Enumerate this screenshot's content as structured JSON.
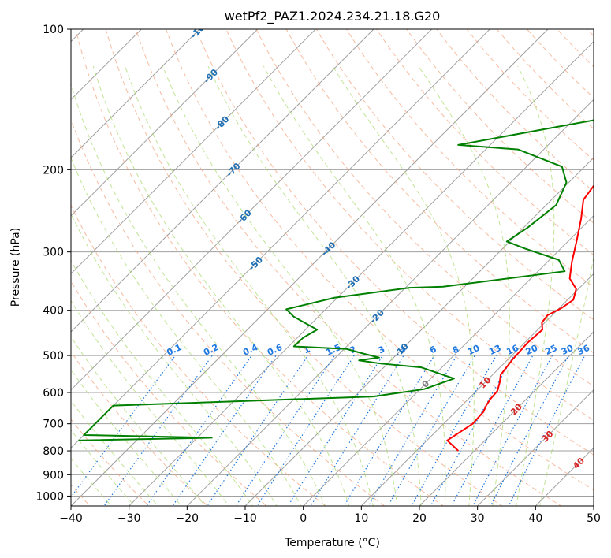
{
  "chart_data": {
    "type": "line",
    "title": "wetPf2_PAZ1.2024.234.21.18.G20",
    "xlabel": "Temperature (°C)",
    "ylabel": "Pressure (hPa)",
    "xlim": [
      -40,
      50
    ],
    "ylim": [
      1050,
      100
    ],
    "y_scale": "log",
    "skew": "skew-T",
    "grid": true,
    "x_ticks": [
      -40,
      -30,
      -20,
      -10,
      0,
      10,
      20,
      30,
      40,
      50
    ],
    "y_ticks": [
      100,
      200,
      300,
      400,
      500,
      600,
      700,
      800,
      900,
      1000
    ],
    "series": [
      {
        "color": "#ff0000",
        "points": [
          [
            17.2,
            800
          ],
          [
            13.5,
            760
          ],
          [
            15.0,
            700
          ],
          [
            14.8,
            660
          ],
          [
            14.2,
            640
          ],
          [
            13.8,
            620
          ],
          [
            13.6,
            595
          ],
          [
            12.5,
            570
          ],
          [
            11.4,
            550
          ],
          [
            10.8,
            510
          ],
          [
            10.5,
            470
          ],
          [
            10.8,
            440
          ],
          [
            9.5,
            425
          ],
          [
            9.2,
            410
          ],
          [
            10.4,
            395
          ],
          [
            11.0,
            380
          ],
          [
            9.6,
            360
          ],
          [
            6.7,
            342
          ],
          [
            4.2,
            315
          ],
          [
            1.5,
            285
          ],
          [
            -1.6,
            255
          ],
          [
            -4.5,
            232
          ],
          [
            -5.2,
            215
          ],
          [
            -3.7,
            197
          ],
          [
            -1.2,
            184
          ],
          [
            3.3,
            172
          ],
          [
            5.8,
            160
          ],
          [
            8.5,
            148
          ],
          [
            10.3,
            138
          ],
          [
            12.2,
            128
          ],
          [
            14.8,
            119
          ],
          [
            17.6,
            111
          ],
          [
            20.4,
            104
          ],
          [
            21.0,
            100
          ]
        ]
      },
      {
        "color": "#008000",
        "points": [
          [
            -50,
            760
          ],
          [
            -27.5,
            750
          ],
          [
            -50,
            740
          ],
          [
            -50,
            702
          ],
          [
            -50,
            672
          ],
          [
            -50,
            663
          ],
          [
            -50,
            640
          ],
          [
            -6.8,
            612
          ],
          [
            0.7,
            590
          ],
          [
            4.0,
            560
          ],
          [
            -3.6,
            530
          ],
          [
            -11.3,
            520
          ],
          [
            -15.5,
            512
          ],
          [
            -12.5,
            505
          ],
          [
            -16,
            495
          ],
          [
            -19.6,
            484
          ],
          [
            -29.1,
            478
          ],
          [
            -29.0,
            458
          ],
          [
            -28.0,
            440
          ],
          [
            -34.2,
            413
          ],
          [
            -36.8,
            398
          ],
          [
            -30.5,
            376
          ],
          [
            -19.3,
            358
          ],
          [
            -13.7,
            356
          ],
          [
            4.6,
            330
          ],
          [
            1.6,
            312
          ],
          [
            -6.2,
            295
          ],
          [
            -10.5,
            285
          ],
          [
            -9.3,
            266
          ],
          [
            -8.3,
            238
          ],
          [
            -10.4,
            213
          ],
          [
            -13.9,
            197
          ],
          [
            -24.4,
            181
          ],
          [
            -35.5,
            177
          ],
          [
            -25.5,
            166
          ],
          [
            -9.6,
            150
          ],
          [
            -5.3,
            140
          ],
          [
            -2.0,
            129
          ],
          [
            2.2,
            120
          ],
          [
            4.7,
            113
          ],
          [
            6.4,
            108
          ],
          [
            9.3,
            101
          ],
          [
            9.5,
            100
          ]
        ]
      }
    ],
    "dry_adiabat_labels": [
      "-100",
      "-90",
      "-80",
      "-70",
      "-60",
      "-50",
      "-40",
      "-30",
      "-20",
      "-10",
      "0",
      "10",
      "20",
      "30",
      "40"
    ],
    "mixing_ratio_labels": [
      "0.1",
      "0.2",
      "0.4",
      "0.6",
      "1",
      "1.5",
      "2",
      "3",
      "4",
      "6",
      "8",
      "10",
      "13",
      "16",
      "20",
      "25",
      "30",
      "36"
    ],
    "colors": {
      "temperature": "#ff0000",
      "dewpoint": "#008000",
      "dry_adiabat": "#f4a582",
      "moist_adiabat": "#a6d96a",
      "mixing_ratio": "#1f78e0",
      "isotherm": "#a0a0a0",
      "theta_label": "#1f6fb4",
      "theta_warm_label": "#d62728"
    }
  }
}
